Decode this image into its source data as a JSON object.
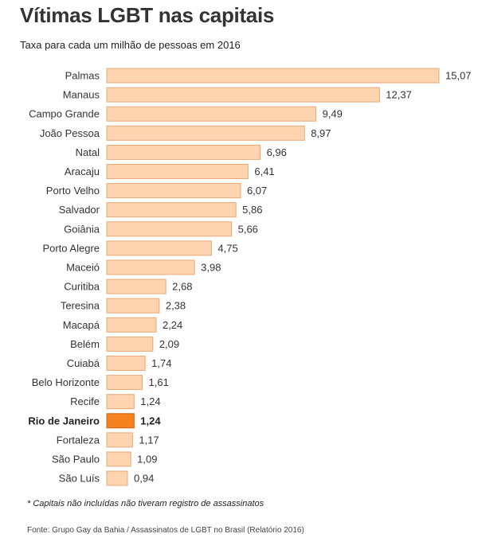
{
  "title": "Vítimas LGBT nas capitais",
  "subtitle": "Taxa para cada um milhão de pessoas em 2016",
  "footnote": "* Capitais não incluídas não tiveram registro de assassinatos",
  "source": "Fonte: Grupo Gay da Bahia / Assassinatos de LGBT no Brasil (Relatório 2016)",
  "colors": {
    "bar": "#fdd4b0",
    "bar_stroke": "#e8a977",
    "highlight": "#f5821f",
    "highlight_stroke": "#c9640f"
  },
  "chart_data": {
    "type": "bar",
    "orientation": "horizontal",
    "categories": [
      "Palmas",
      "Manaus",
      "Campo Grande",
      "João Pessoa",
      "Natal",
      "Aracaju",
      "Porto Velho",
      "Salvador",
      "Goiânia",
      "Porto Alegre",
      "Maceió",
      "Curitiba",
      "Teresina",
      "Macapá",
      "Belém",
      "Cuiabá",
      "Belo Horizonte",
      "Recife",
      "Rio de Janeiro",
      "Fortaleza",
      "São Paulo",
      "São Luís"
    ],
    "values": [
      15.07,
      12.37,
      9.49,
      8.97,
      6.96,
      6.41,
      6.07,
      5.86,
      5.66,
      4.75,
      3.98,
      2.68,
      2.38,
      2.24,
      2.09,
      1.74,
      1.61,
      1.24,
      1.24,
      1.17,
      1.09,
      0.94
    ],
    "value_labels": [
      "15,07",
      "12,37",
      "9,49",
      "8,97",
      "6,96",
      "6,41",
      "6,07",
      "5,86",
      "5,66",
      "4,75",
      "3,98",
      "2,68",
      "2,38",
      "2,24",
      "2,09",
      "1,74",
      "1,61",
      "1,24",
      "1,24",
      "1,17",
      "1,09",
      "0,94"
    ],
    "highlighted": "Rio de Janeiro",
    "xlim": [
      0,
      15.07
    ],
    "grid": false,
    "legend": "none"
  }
}
